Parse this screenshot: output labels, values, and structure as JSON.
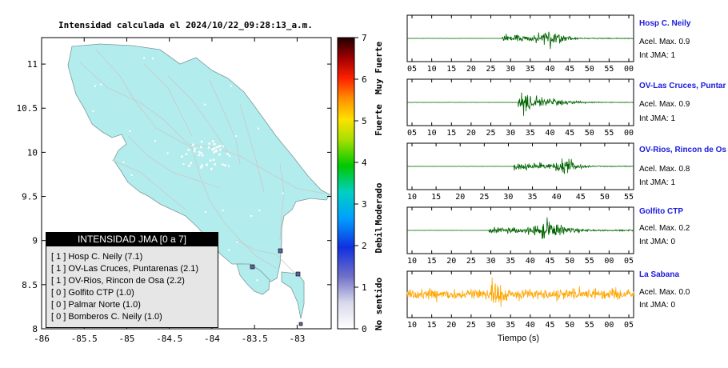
{
  "map": {
    "title": "Intensidad calculada el 2024/10/22_09:28:13_a.m.",
    "x_ticks": [
      "-86",
      "-85.5",
      "-85",
      "-84.5",
      "-84",
      "-83.5",
      "-83"
    ],
    "y_ticks": [
      "11",
      "10.5",
      "10",
      "9.5",
      "9",
      "8.5",
      "8"
    ],
    "land_color": "#b3ecec",
    "sea_color": "#ffffff"
  },
  "colorbar": {
    "ticks": [
      "7",
      "6",
      "5",
      "4",
      "3",
      "2",
      "1",
      "0"
    ],
    "labels": [
      "Muy Fuerte",
      "Fuerte",
      "Moderado",
      "Debil",
      "No sentido"
    ]
  },
  "legend": {
    "title": "INTENSIDAD JMA [0 a 7]",
    "rows": [
      {
        "level": "[ 1 ]",
        "name": "Hosp C. Neily (7.1)"
      },
      {
        "level": "[ 1 ]",
        "name": "OV-Las Cruces, Puntarenas (2.1)"
      },
      {
        "level": "[ 1 ]",
        "name": "OV-Rios, Rincon de Osa (2.2)"
      },
      {
        "level": "[ 0 ]",
        "name": "Golfito CTP (1.0)"
      },
      {
        "level": "[ 0 ]",
        "name": "Palmar Norte (1.0)"
      },
      {
        "level": "[ 0 ]",
        "name": "Bomberos C. Neily (1.0)"
      }
    ]
  },
  "stations": [
    {
      "name": "Hosp C. Neily",
      "accel": "Acel. Max. 0.9",
      "jma": "Int JMA: 1",
      "color": "#006400",
      "ticks": [
        "05",
        "10",
        "15",
        "20",
        "25",
        "30",
        "35",
        "40",
        "45",
        "50",
        "55",
        "00"
      ]
    },
    {
      "name": "OV-Las Cruces, Puntar",
      "accel": "Acel. Max. 0.9",
      "jma": "Int JMA: 1",
      "color": "#006400",
      "ticks": [
        "05",
        "10",
        "15",
        "20",
        "25",
        "30",
        "35",
        "40",
        "45",
        "50",
        "55",
        "00"
      ]
    },
    {
      "name": "OV-Rios, Rincon de Os",
      "accel": "Acel. Max. 0.8",
      "jma": "Int JMA: 1",
      "color": "#006400",
      "ticks": [
        "10",
        "15",
        "20",
        "25",
        "30",
        "35",
        "40",
        "45",
        "50",
        "55"
      ]
    },
    {
      "name": "Golfito CTP",
      "accel": "Acel. Max. 0.2",
      "jma": "Int JMA: 0",
      "color": "#006400",
      "ticks": [
        "10",
        "15",
        "20",
        "25",
        "30",
        "35",
        "40",
        "45",
        "50",
        "55",
        "00",
        "05"
      ]
    },
    {
      "name": "La Sabana",
      "accel": "Acel. Max. 0.0",
      "jma": "Int JMA: 0",
      "color": "#ffa500",
      "ticks": [
        "10",
        "15",
        "20",
        "25",
        "30",
        "35",
        "40",
        "45",
        "50",
        "55",
        "00",
        "05"
      ]
    }
  ],
  "seismo_xlabel": "Tiempo (s)",
  "chart_data": [
    {
      "type": "heatmap",
      "title": "Intensidad calculada el 2024/10/22_09:28:13_a.m.",
      "xlim": [
        -86,
        -82.6
      ],
      "ylim": [
        8,
        11.3
      ],
      "x_ticks": [
        -86,
        -85.5,
        -85,
        -84.5,
        -84,
        -83.5,
        -83
      ],
      "y_ticks": [
        8,
        8.5,
        9,
        9.5,
        10,
        10.5,
        11
      ],
      "colorbar_range": [
        0,
        7
      ],
      "colorbar_labels": [
        "Muy Fuerte",
        "Fuerte",
        "Moderado",
        "Debil",
        "No sentido"
      ],
      "stations": [
        {
          "name": "Hosp C. Neily",
          "jma": 1,
          "value": 7.1
        },
        {
          "name": "OV-Las Cruces, Puntarenas",
          "jma": 1,
          "value": 2.1
        },
        {
          "name": "OV-Rios, Rincon de Osa",
          "jma": 1,
          "value": 2.2
        },
        {
          "name": "Golfito CTP",
          "jma": 0,
          "value": 1.0
        },
        {
          "name": "Palmar Norte",
          "jma": 0,
          "value": 1.0
        },
        {
          "name": "Bomberos C. Neily",
          "jma": 0,
          "value": 1.0
        }
      ],
      "grid": false
    },
    {
      "type": "line",
      "xlabel": "Tiempo (s)",
      "series": [
        {
          "name": "Hosp C. Neily",
          "onset": 29,
          "peak_time": 41,
          "acel_max": 0.9,
          "jma": 1
        },
        {
          "name": "OV-Las Cruces, Puntar",
          "onset": 32,
          "peak_time": 33,
          "acel_max": 0.9,
          "jma": 1
        },
        {
          "name": "OV-Rios, Rincon de Os",
          "onset": 30,
          "peak_time": 44,
          "acel_max": 0.8,
          "jma": 1
        },
        {
          "name": "Golfito CTP",
          "onset": 28,
          "peak_time": 40,
          "acel_max": 0.2,
          "jma": 0
        },
        {
          "name": "La Sabana",
          "onset": 5,
          "peak_time": 30,
          "acel_max": 0.0,
          "jma": 0
        }
      ]
    }
  ]
}
